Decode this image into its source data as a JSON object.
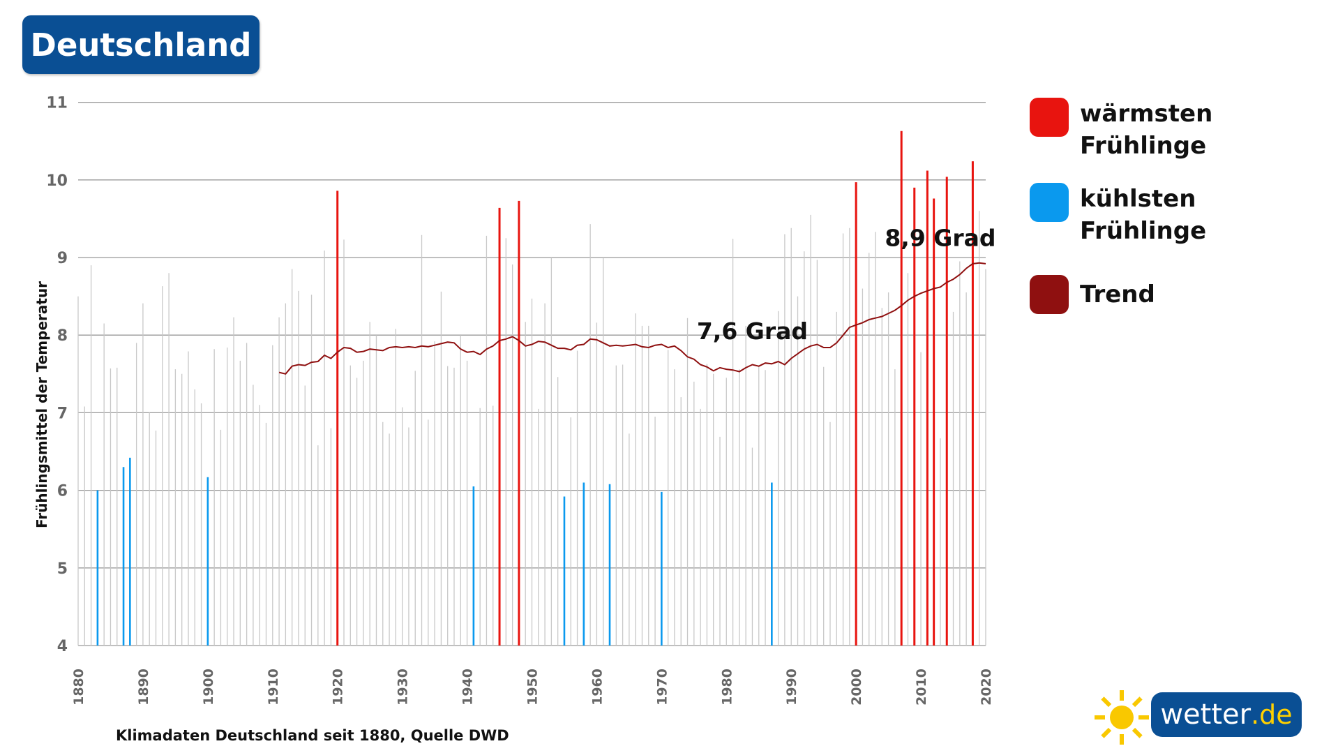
{
  "header": {
    "title": "Deutschland"
  },
  "legend": {
    "items": [
      {
        "line1": "wärmsten",
        "line2": "Frühlinge",
        "color": "#e8140f",
        "icon": "red-square"
      },
      {
        "line1": "kühlsten",
        "line2": "Frühlinge",
        "color": "#0a99ee",
        "icon": "blue-square"
      },
      {
        "line1": "Trend",
        "line2": "",
        "color": "#8f1010",
        "icon": "darkred-square"
      }
    ]
  },
  "footer": {
    "source": "Klimadaten Deutschland seit 1880, Quelle DWD"
  },
  "logo": {
    "name": "wetter",
    "tld": ".de",
    "icon": "sun-icon",
    "sun_color": "#f9c800"
  },
  "chart_data": {
    "type": "bar",
    "title": "Deutschland",
    "xlabel": "",
    "ylabel": "Frühlingsmittel der Temperatur",
    "ylim": [
      4,
      11
    ],
    "xlim": [
      1880,
      2020
    ],
    "yticks": [
      "4",
      "5",
      "6",
      "7",
      "8",
      "9",
      "10",
      "11"
    ],
    "xticks": [
      "1880",
      "1890",
      "1900",
      "1910",
      "1920",
      "1930",
      "1940",
      "1950",
      "1960",
      "1970",
      "1980",
      "1990",
      "2000",
      "2010",
      "2020"
    ],
    "grid": true,
    "legend_position": "right",
    "colors": {
      "normal": "#c8c8c8",
      "warm": "#e8140f",
      "cold": "#0a99ee",
      "trend": "#8f1010",
      "grid": "#999999"
    },
    "annotations": [
      {
        "text": "7,6 Grad",
        "x": 1984,
        "y": 7.95
      },
      {
        "text": "8,9 Grad",
        "x": 2013,
        "y": 9.15
      }
    ],
    "series": [
      {
        "name": "wärmsten Frühlinge",
        "category": "warm",
        "years": [
          1920,
          1945,
          1948,
          2000,
          2007,
          2009,
          2011,
          2012,
          2014,
          2018
        ],
        "values": [
          9.86,
          9.64,
          9.73,
          9.97,
          10.63,
          9.9,
          10.12,
          9.76,
          10.04,
          10.24
        ]
      },
      {
        "name": "kühlsten Frühlinge",
        "category": "cold",
        "years": [
          1883,
          1887,
          1888,
          1900,
          1941,
          1955,
          1958,
          1962,
          1970,
          1987
        ],
        "values": [
          6.0,
          6.3,
          6.42,
          6.17,
          6.05,
          5.92,
          6.1,
          6.08,
          5.98,
          6.1
        ]
      },
      {
        "name": "",
        "category": "normal",
        "years": [
          1880,
          1881,
          1882,
          1884,
          1885,
          1886,
          1889,
          1890,
          1891,
          1892,
          1893,
          1894,
          1895,
          1896,
          1897,
          1898,
          1899,
          1901,
          1902,
          1903,
          1904,
          1905,
          1906,
          1907,
          1908,
          1909,
          1910,
          1911,
          1912,
          1913,
          1914,
          1915,
          1916,
          1917,
          1918,
          1919,
          1921,
          1922,
          1923,
          1924,
          1925,
          1926,
          1927,
          1928,
          1929,
          1930,
          1931,
          1932,
          1933,
          1934,
          1935,
          1936,
          1937,
          1938,
          1939,
          1940,
          1942,
          1943,
          1944,
          1946,
          1947,
          1949,
          1950,
          1951,
          1952,
          1953,
          1954,
          1956,
          1957,
          1959,
          1960,
          1961,
          1963,
          1964,
          1965,
          1966,
          1967,
          1968,
          1969,
          1971,
          1972,
          1973,
          1974,
          1975,
          1976,
          1977,
          1978,
          1979,
          1980,
          1981,
          1982,
          1983,
          1984,
          1985,
          1986,
          1988,
          1989,
          1990,
          1991,
          1992,
          1993,
          1994,
          1995,
          1996,
          1997,
          1998,
          1999,
          2001,
          2002,
          2003,
          2004,
          2005,
          2006,
          2008,
          2010,
          2013,
          2015,
          2016,
          2017,
          2019,
          2020
        ],
        "values": [
          8.5,
          7.08,
          8.9,
          8.15,
          7.57,
          7.58,
          7.9,
          8.41,
          7.0,
          6.77,
          8.63,
          8.8,
          7.56,
          7.5,
          7.79,
          7.3,
          7.12,
          7.82,
          6.78,
          7.84,
          8.23,
          7.67,
          7.9,
          7.36,
          7.1,
          6.87,
          7.87,
          8.23,
          8.41,
          8.85,
          8.57,
          7.35,
          8.52,
          6.58,
          9.09,
          6.8,
          9.23,
          7.61,
          7.45,
          7.67,
          8.17,
          8.0,
          6.88,
          6.73,
          8.08,
          7.07,
          6.81,
          7.54,
          9.29,
          6.91,
          7.92,
          8.56,
          7.6,
          7.58,
          8.0,
          7.67,
          7.06,
          9.28,
          7.09,
          9.25,
          8.91,
          8.17,
          8.47,
          7.05,
          8.41,
          9.0,
          7.46,
          6.94,
          7.8,
          9.43,
          8.16,
          9.0,
          7.61,
          7.62,
          6.73,
          8.28,
          8.12,
          8.12,
          6.95,
          7.81,
          7.56,
          7.2,
          8.22,
          7.4,
          7.05,
          7.63,
          7.5,
          6.69,
          7.45,
          9.24,
          7.56,
          8.12,
          6.55,
          7.6,
          7.55,
          8.31,
          9.3,
          9.38,
          8.5,
          9.08,
          9.55,
          8.97,
          7.59,
          6.88,
          8.3,
          9.31,
          9.38,
          8.6,
          9.06,
          9.33,
          8.35,
          8.55,
          7.56,
          8.8,
          7.78,
          6.67,
          8.3,
          8.95,
          8.55,
          9.6,
          8.85
        ]
      },
      {
        "name": "Trend",
        "category": "trend",
        "years": [
          1911,
          1912,
          1913,
          1914,
          1915,
          1916,
          1917,
          1918,
          1919,
          1920,
          1921,
          1922,
          1923,
          1924,
          1925,
          1926,
          1927,
          1928,
          1929,
          1930,
          1931,
          1932,
          1933,
          1934,
          1935,
          1936,
          1937,
          1938,
          1939,
          1940,
          1941,
          1942,
          1943,
          1944,
          1945,
          1946,
          1947,
          1948,
          1949,
          1950,
          1951,
          1952,
          1953,
          1954,
          1955,
          1956,
          1957,
          1958,
          1959,
          1960,
          1961,
          1962,
          1963,
          1964,
          1965,
          1966,
          1967,
          1968,
          1969,
          1970,
          1971,
          1972,
          1973,
          1974,
          1975,
          1976,
          1977,
          1978,
          1979,
          1980,
          1981,
          1982,
          1983,
          1984,
          1985,
          1986,
          1987,
          1988,
          1989,
          1990,
          1991,
          1992,
          1993,
          1994,
          1995,
          1996,
          1997,
          1998,
          1999,
          2000,
          2001,
          2002,
          2003,
          2004,
          2005,
          2006,
          2007,
          2008,
          2009,
          2010,
          2011,
          2012,
          2013,
          2014,
          2015,
          2016,
          2017,
          2018,
          2019,
          2020
        ],
        "values": [
          7.52,
          7.5,
          7.6,
          7.62,
          7.61,
          7.65,
          7.66,
          7.74,
          7.7,
          7.78,
          7.84,
          7.83,
          7.78,
          7.79,
          7.82,
          7.81,
          7.8,
          7.84,
          7.85,
          7.84,
          7.85,
          7.84,
          7.86,
          7.85,
          7.87,
          7.89,
          7.91,
          7.9,
          7.82,
          7.78,
          7.79,
          7.75,
          7.82,
          7.86,
          7.93,
          7.95,
          7.98,
          7.93,
          7.86,
          7.88,
          7.92,
          7.91,
          7.87,
          7.83,
          7.83,
          7.81,
          7.87,
          7.88,
          7.95,
          7.94,
          7.9,
          7.86,
          7.87,
          7.86,
          7.87,
          7.88,
          7.85,
          7.84,
          7.87,
          7.88,
          7.84,
          7.86,
          7.8,
          7.72,
          7.69,
          7.62,
          7.59,
          7.54,
          7.58,
          7.56,
          7.55,
          7.53,
          7.58,
          7.62,
          7.6,
          7.64,
          7.63,
          7.66,
          7.62,
          7.7,
          7.76,
          7.82,
          7.86,
          7.88,
          7.84,
          7.84,
          7.9,
          8.0,
          8.1,
          8.13,
          8.16,
          8.2,
          8.22,
          8.24,
          8.28,
          8.32,
          8.38,
          8.45,
          8.5,
          8.54,
          8.57,
          8.6,
          8.62,
          8.68,
          8.72,
          8.78,
          8.86,
          8.92,
          8.93,
          8.92
        ]
      }
    ]
  }
}
